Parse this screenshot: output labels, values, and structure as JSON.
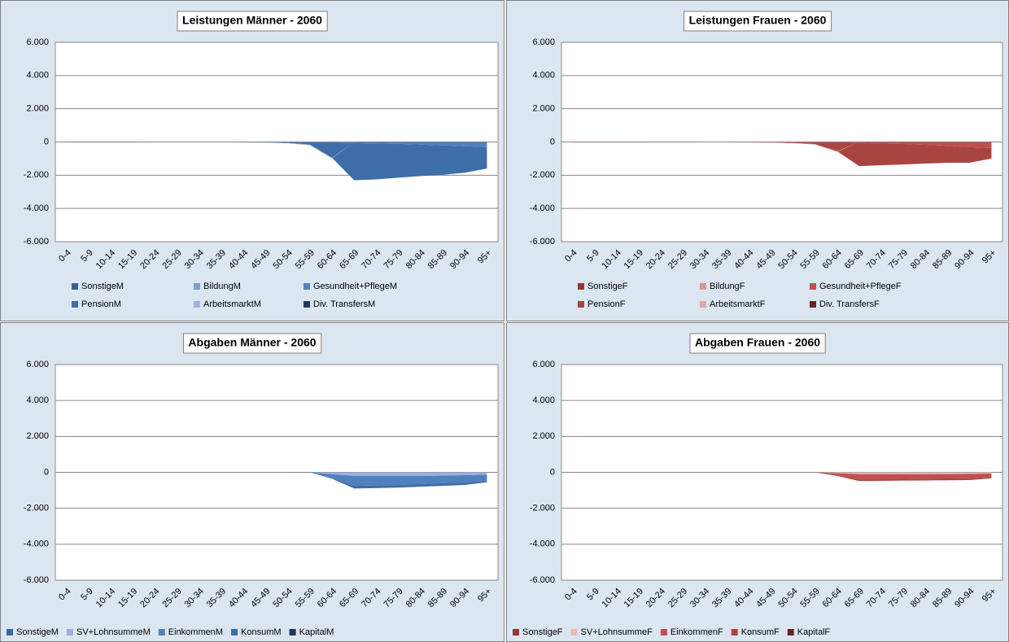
{
  "chart_data": [
    {
      "type": "area",
      "stacked": true,
      "title": "Leistungen Männer - 2060",
      "categories": [
        "0-4",
        "5-9",
        "10-14",
        "15-19",
        "20-24",
        "25-29",
        "30-34",
        "35-39",
        "40-44",
        "45-49",
        "50-54",
        "55-59",
        "60-64",
        "65-69",
        "70-74",
        "75-79",
        "80-84",
        "85-89",
        "90-94",
        "95+"
      ],
      "ylim": [
        -6000,
        6000
      ],
      "yticks": [
        {
          "value": -6000,
          "label": "-6.000"
        },
        {
          "value": -4000,
          "label": "-4.000"
        },
        {
          "value": -2000,
          "label": "-2.000"
        },
        0,
        {
          "value": 2000,
          "label": "2.000"
        },
        {
          "value": 4000,
          "label": "4.000"
        },
        {
          "value": 6000,
          "label": "6.000"
        }
      ],
      "grid": true,
      "series": [
        {
          "name": "SonstigeM",
          "color": "#386096",
          "values": [
            -10,
            -10,
            -10,
            -10,
            -5,
            -5,
            -5,
            -5,
            -5,
            -5,
            -10,
            -10,
            -10,
            -10,
            -10,
            -10,
            -10,
            -10,
            -10,
            -10
          ]
        },
        {
          "name": "BildungM",
          "color": "#7f9fd3",
          "values": [
            0,
            -5,
            -5,
            -5,
            -5,
            0,
            0,
            0,
            0,
            0,
            0,
            0,
            0,
            0,
            0,
            0,
            0,
            0,
            0,
            0
          ]
        },
        {
          "name": "Gesundheit+PflegeM",
          "color": "#4f81bd",
          "values": [
            -10,
            -5,
            -5,
            -5,
            -5,
            -5,
            -5,
            -5,
            -10,
            -10,
            -15,
            -20,
            -40,
            -60,
            -80,
            -100,
            -150,
            -200,
            -250,
            -300
          ]
        },
        {
          "name": "PensionM",
          "color": "#3e6ea8",
          "values": [
            0,
            0,
            0,
            0,
            0,
            0,
            -5,
            -5,
            -5,
            -10,
            -30,
            -130,
            -900,
            -2230,
            -2160,
            -2040,
            -1890,
            -1770,
            -1590,
            -1290
          ]
        },
        {
          "name": "ArbeitsmarktM",
          "color": "#a0b4d8",
          "values": [
            0,
            0,
            0,
            0,
            -5,
            -10,
            -10,
            -10,
            -10,
            -15,
            -25,
            -40,
            -50,
            0,
            0,
            0,
            0,
            0,
            0,
            0
          ]
        },
        {
          "name": "Div. TransfersM",
          "color": "#223a5e",
          "values": [
            0,
            0,
            0,
            0,
            0,
            0,
            0,
            0,
            0,
            0,
            0,
            0,
            0,
            0,
            0,
            0,
            0,
            0,
            0,
            0
          ]
        }
      ]
    },
    {
      "type": "area",
      "stacked": true,
      "title": "Leistungen Frauen - 2060",
      "categories": [
        "0-4",
        "5-9",
        "10-14",
        "15-19",
        "20-24",
        "25-29",
        "30-34",
        "35-39",
        "40-44",
        "45-49",
        "50-54",
        "55-59",
        "60-64",
        "65-69",
        "70-74",
        "75-79",
        "80-84",
        "85-89",
        "90-94",
        "95+"
      ],
      "ylim": [
        -6000,
        6000
      ],
      "yticks": [
        {
          "value": -6000,
          "label": "-6.000"
        },
        {
          "value": -4000,
          "label": "-4.000"
        },
        {
          "value": -2000,
          "label": "-2.000"
        },
        0,
        {
          "value": 2000,
          "label": "2.000"
        },
        {
          "value": 4000,
          "label": "4.000"
        },
        {
          "value": 6000,
          "label": "6.000"
        }
      ],
      "grid": true,
      "series": [
        {
          "name": "SonstigeF",
          "color": "#953735",
          "values": [
            -10,
            -10,
            -10,
            -10,
            -5,
            -5,
            -5,
            -5,
            -5,
            -5,
            -10,
            -10,
            -10,
            -10,
            -10,
            -10,
            -10,
            -10,
            -10,
            -10
          ]
        },
        {
          "name": "BildungF",
          "color": "#d99694",
          "values": [
            0,
            -5,
            -5,
            -5,
            -5,
            0,
            0,
            0,
            0,
            0,
            0,
            0,
            0,
            0,
            0,
            0,
            0,
            0,
            0,
            0
          ]
        },
        {
          "name": "Gesundheit+PflegeF",
          "color": "#c0504d",
          "values": [
            -10,
            -5,
            -5,
            -5,
            -5,
            -5,
            -10,
            -10,
            -10,
            -10,
            -15,
            -20,
            -30,
            -50,
            -80,
            -110,
            -160,
            -220,
            -300,
            -350
          ]
        },
        {
          "name": "PensionF",
          "color": "#a94541",
          "values": [
            0,
            0,
            0,
            0,
            0,
            0,
            0,
            0,
            -5,
            -10,
            -30,
            -100,
            -520,
            -1390,
            -1310,
            -1230,
            -1130,
            -1020,
            -940,
            -640
          ]
        },
        {
          "name": "ArbeitsmarktF",
          "color": "#e0a9a7",
          "values": [
            0,
            0,
            0,
            0,
            -5,
            -10,
            -10,
            -10,
            -10,
            -15,
            -25,
            -30,
            -40,
            0,
            0,
            0,
            0,
            0,
            0,
            0
          ]
        },
        {
          "name": "Div. TransfersF",
          "color": "#632523",
          "values": [
            0,
            0,
            0,
            0,
            0,
            0,
            0,
            0,
            0,
            0,
            0,
            0,
            0,
            0,
            0,
            0,
            0,
            0,
            0,
            0
          ]
        }
      ]
    },
    {
      "type": "area",
      "stacked": true,
      "title": "Abgaben Männer - 2060",
      "categories": [
        "0-4",
        "5-9",
        "10-14",
        "15-19",
        "20-24",
        "25-29",
        "30-34",
        "35-39",
        "40-44",
        "45-49",
        "50-54",
        "55-59",
        "60-64",
        "65-69",
        "70-74",
        "75-79",
        "80-84",
        "85-89",
        "90-94",
        "95+"
      ],
      "ylim": [
        -6000,
        6000
      ],
      "yticks": [
        {
          "value": -6000,
          "label": "-6.000"
        },
        {
          "value": -4000,
          "label": "-4.000"
        },
        {
          "value": -2000,
          "label": "-2.000"
        },
        0,
        {
          "value": 2000,
          "label": "2.000"
        },
        {
          "value": 4000,
          "label": "4.000"
        },
        {
          "value": 6000,
          "label": "6.000"
        }
      ],
      "grid": true,
      "series": [
        {
          "name": "SonstigeM",
          "color": "#3c679f",
          "values": [
            0,
            0,
            0,
            0,
            0,
            0,
            0,
            0,
            0,
            0,
            0,
            0,
            0,
            0,
            0,
            0,
            0,
            0,
            0,
            0
          ]
        },
        {
          "name": "SV+LohnsummeM",
          "color": "#9cb0dc",
          "values": [
            0,
            0,
            0,
            0,
            0,
            0,
            0,
            0,
            0,
            0,
            0,
            0,
            -100,
            -200,
            -200,
            -200,
            -200,
            -180,
            -160,
            -130
          ]
        },
        {
          "name": "EinkommenM",
          "color": "#4f81bd",
          "values": [
            0,
            0,
            0,
            0,
            0,
            0,
            0,
            0,
            0,
            0,
            0,
            -10,
            -200,
            -550,
            -530,
            -500,
            -450,
            -420,
            -400,
            -320
          ]
        },
        {
          "name": "KonsumM",
          "color": "#416ea5",
          "values": [
            0,
            0,
            0,
            0,
            0,
            0,
            0,
            0,
            0,
            0,
            0,
            0,
            -50,
            -150,
            -150,
            -150,
            -150,
            -150,
            -140,
            -100
          ]
        },
        {
          "name": "KapitalM",
          "color": "#1f3859",
          "values": [
            0,
            0,
            0,
            0,
            0,
            0,
            0,
            0,
            0,
            0,
            0,
            0,
            0,
            0,
            0,
            0,
            0,
            0,
            0,
            0
          ]
        }
      ]
    },
    {
      "type": "area",
      "stacked": true,
      "title": "Abgaben Frauen - 2060",
      "categories": [
        "0-4",
        "5-9",
        "10-14",
        "15-19",
        "20-24",
        "25-29",
        "30-34",
        "35-39",
        "40-44",
        "45-49",
        "50-54",
        "55-59",
        "60-64",
        "65-69",
        "70-74",
        "75-79",
        "80-84",
        "85-89",
        "90-94",
        "95+"
      ],
      "ylim": [
        -6000,
        6000
      ],
      "yticks": [
        {
          "value": -6000,
          "label": "-6.000"
        },
        {
          "value": -4000,
          "label": "-4.000"
        },
        {
          "value": -2000,
          "label": "-2.000"
        },
        0,
        {
          "value": 2000,
          "label": "2.000"
        },
        {
          "value": 4000,
          "label": "4.000"
        },
        {
          "value": 6000,
          "label": "6.000"
        }
      ],
      "grid": true,
      "series": [
        {
          "name": "SonstigeF",
          "color": "#953735",
          "values": [
            0,
            0,
            0,
            0,
            0,
            0,
            0,
            0,
            0,
            0,
            0,
            0,
            0,
            0,
            0,
            0,
            0,
            0,
            0,
            0
          ]
        },
        {
          "name": "SV+LohnsummeF",
          "color": "#e6b9b8",
          "values": [
            0,
            0,
            0,
            0,
            0,
            0,
            0,
            0,
            0,
            0,
            0,
            0,
            -50,
            -100,
            -100,
            -100,
            -100,
            -100,
            -90,
            -70
          ]
        },
        {
          "name": "EinkommenF",
          "color": "#c0504d",
          "values": [
            0,
            0,
            0,
            0,
            0,
            0,
            0,
            0,
            0,
            0,
            0,
            0,
            -100,
            -280,
            -270,
            -260,
            -250,
            -240,
            -240,
            -190
          ]
        },
        {
          "name": "KonsumF",
          "color": "#a94541",
          "values": [
            0,
            0,
            0,
            0,
            0,
            0,
            0,
            0,
            0,
            0,
            0,
            0,
            -50,
            -100,
            -100,
            -100,
            -100,
            -100,
            -100,
            -70
          ]
        },
        {
          "name": "KapitalF",
          "color": "#632523",
          "values": [
            0,
            0,
            0,
            0,
            0,
            0,
            0,
            0,
            0,
            0,
            0,
            0,
            0,
            0,
            0,
            0,
            0,
            0,
            0,
            0
          ]
        }
      ]
    }
  ]
}
